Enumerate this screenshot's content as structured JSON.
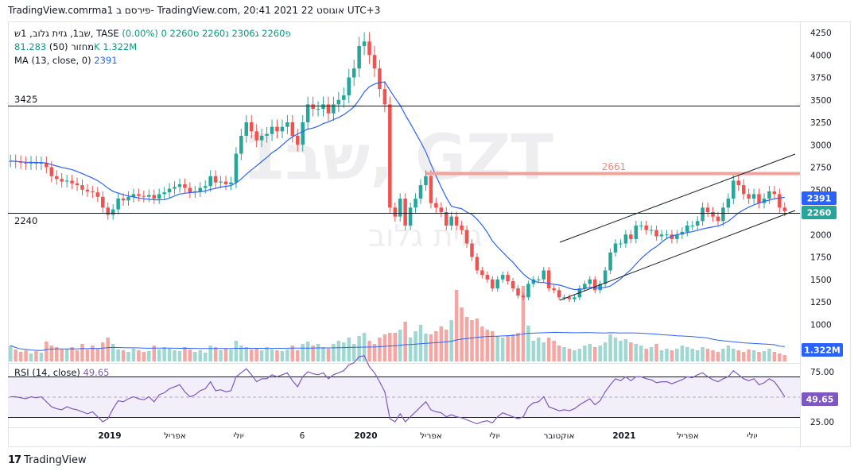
{
  "header": {
    "caption": "TradingView.comrma1 פירסם ב- TradingView.com, 20:41 2021 אוגוסט 22 UTC+3"
  },
  "legend": {
    "symbol": "שב1, גזית גלוב, 1ש, TASE",
    "ohlc": "פ2260 ג2306 נ2260 ס2260 0 (0.00%)",
    "volume_label": "מחזור (50)",
    "volume_values": "81.283K 1.322M",
    "ma_label": "MA (13, close, 0)",
    "ma_value": "2391",
    "rsi_label": "RSI (14, close)",
    "rsi_value": "49.65"
  },
  "watermark": {
    "big": "שב1, GZT",
    "sub": "גזית גלוב"
  },
  "price_axis": [
    "4250",
    "4000",
    "3750",
    "3500",
    "3250",
    "3000",
    "2750",
    "2500",
    "2250",
    "2000",
    "1750",
    "1500",
    "1250",
    "1000",
    "750"
  ],
  "rsi_axis": [
    "75.00",
    "25.00"
  ],
  "time_axis": [
    "2019",
    "אפריל",
    "יולי",
    "6",
    "2020",
    "אפריל",
    "יולי",
    "אוקטובר",
    "2021",
    "אפריל",
    "יולי"
  ],
  "badges": {
    "ma": "2391",
    "price": "2260",
    "volume": "1.322M",
    "rsi": "49.65"
  },
  "levels": {
    "upper": "3425",
    "lower": "2240",
    "resistance": "2661"
  },
  "footer": {
    "brand": "TradingView",
    "logo": "17"
  },
  "colors": {
    "up": "#26a69a",
    "down": "#ef5350",
    "ma": "#2962ff",
    "resistance": "#f08a80",
    "rsi": "#7e57c2",
    "rsi_band": "#f3effa",
    "vol_up": "#9fd8d2",
    "vol_down": "#f5a6a3"
  },
  "chart_data": {
    "type": "candlestick",
    "symbol": "TASE:GZT",
    "title": "שב1, גזית גלוב, 1ש, TASE",
    "timeframe": "1W",
    "y_range": [
      700,
      4330
    ],
    "price_levels": {
      "horizontal_lines": [
        3425,
        2240
      ],
      "resistance_line": 2661
    },
    "channel": {
      "lower_start": 1270,
      "lower_end": 2240,
      "upper_start": 1890,
      "upper_end": 2900
    },
    "last": {
      "close": 2260,
      "ma13": 2391,
      "volume": "1.322M",
      "rsi": 49.65
    },
    "close_series_approx": [
      2820,
      2810,
      2800,
      2790,
      2805,
      2790,
      2800,
      2750,
      2650,
      2620,
      2590,
      2600,
      2570,
      2550,
      2500,
      2480,
      2470,
      2420,
      2300,
      2220,
      2280,
      2400,
      2380,
      2420,
      2450,
      2430,
      2420,
      2440,
      2400,
      2450,
      2470,
      2510,
      2530,
      2560,
      2520,
      2470,
      2480,
      2520,
      2540,
      2650,
      2580,
      2590,
      2560,
      2580,
      2900,
      3100,
      3250,
      3150,
      3050,
      3100,
      3120,
      3200,
      3150,
      3200,
      3250,
      3100,
      3000,
      3250,
      3450,
      3400,
      3400,
      3450,
      3350,
      3450,
      3500,
      3550,
      3750,
      3850,
      4100,
      4150,
      4000,
      3850,
      3620,
      3450,
      2300,
      2200,
      2400,
      2100,
      2300,
      2400,
      2550,
      2650,
      2350,
      2300,
      2250,
      2100,
      2200,
      2100,
      2050,
      1900,
      1750,
      1600,
      1550,
      1500,
      1400,
      1500,
      1550,
      1480,
      1400,
      1320,
      1300,
      1450,
      1500,
      1500,
      1600,
      1400,
      1380,
      1300,
      1300,
      1280,
      1300,
      1400,
      1450,
      1500,
      1380,
      1450,
      1600,
      1800,
      1900,
      1900,
      2000,
      1950,
      2100,
      2100,
      2050,
      2050,
      1980,
      2000,
      2000,
      1950,
      2000,
      2030,
      2100,
      2100,
      2150,
      2300,
      2250,
      2200,
      2150,
      2300,
      2400,
      2600,
      2550,
      2450,
      2400,
      2450,
      2350,
      2400,
      2480,
      2450,
      2300,
      2260
    ],
    "rsi_series_approx": [
      50,
      50,
      49,
      48,
      50,
      49,
      50,
      45,
      40,
      38,
      37,
      40,
      38,
      37,
      35,
      33,
      35,
      30,
      25,
      28,
      38,
      46,
      45,
      48,
      50,
      48,
      47,
      50,
      45,
      52,
      54,
      58,
      60,
      62,
      55,
      50,
      52,
      56,
      58,
      65,
      56,
      57,
      55,
      56,
      70,
      74,
      78,
      72,
      65,
      68,
      68,
      72,
      70,
      72,
      74,
      66,
      60,
      70,
      75,
      73,
      72,
      74,
      68,
      72,
      74,
      76,
      82,
      84,
      90,
      91,
      80,
      74,
      65,
      55,
      28,
      25,
      33,
      25,
      30,
      35,
      40,
      45,
      37,
      35,
      34,
      30,
      32,
      30,
      29,
      27,
      25,
      23,
      25,
      26,
      24,
      30,
      34,
      32,
      30,
      28,
      30,
      40,
      44,
      45,
      50,
      40,
      38,
      36,
      37,
      36,
      38,
      42,
      45,
      48,
      42,
      46,
      55,
      62,
      68,
      66,
      70,
      66,
      70,
      70,
      68,
      67,
      64,
      65,
      65,
      63,
      65,
      67,
      70,
      69,
      72,
      74,
      70,
      67,
      65,
      68,
      70,
      76,
      72,
      68,
      66,
      68,
      62,
      64,
      68,
      65,
      58,
      50
    ],
    "volume_series_approx": [
      2,
      1.5,
      1.2,
      1.4,
      1,
      1.3,
      1.1,
      2.5,
      2,
      1.8,
      1.5,
      1.6,
      1.8,
      1.4,
      2.2,
      1.5,
      2,
      1.6,
      2.4,
      3,
      2.2,
      1.5,
      1.4,
      1.2,
      1.6,
      1.4,
      1.2,
      1.3,
      2,
      1.5,
      1.8,
      1.6,
      1.4,
      1.3,
      1.8,
      1.5,
      1.2,
      1.4,
      1.1,
      2,
      1.8,
      1.4,
      1.6,
      1.5,
      2.6,
      2,
      1.8,
      1.5,
      1.6,
      1.4,
      1.8,
      1.5,
      1.4,
      1.3,
      1.5,
      2,
      1.4,
      2.2,
      2.5,
      2,
      2.2,
      1.8,
      1.6,
      2.2,
      2.6,
      2.4,
      3,
      2.2,
      3.2,
      3.6,
      2.6,
      2.2,
      3,
      3.4,
      3.6,
      3.6,
      4,
      5,
      3,
      3.8,
      4.6,
      3.5,
      3.4,
      3.8,
      4.4,
      4,
      5.2,
      9,
      6.8,
      5.6,
      5.2,
      5.4,
      4.4,
      4,
      3.8,
      3.2,
      3,
      3.2,
      3.4,
      3.6,
      9.5,
      4.5,
      2.6,
      3,
      2.4,
      3,
      2.6,
      2,
      1.8,
      1.6,
      1.4,
      1.6,
      2,
      2.2,
      1.8,
      2,
      2.4,
      3.4,
      3,
      2.6,
      2.8,
      2.4,
      2.2,
      2,
      1.6,
      1.8,
      2.2,
      1.4,
      1.6,
      1.4,
      1.6,
      2,
      1.8,
      1.6,
      1.4,
      1.8,
      1.6,
      1.4,
      1.2,
      1.6,
      2,
      1.6,
      1.4,
      1.2,
      1.5,
      1.4,
      1.2,
      1.3,
      1.6,
      1.2,
      1,
      0.8
    ]
  }
}
